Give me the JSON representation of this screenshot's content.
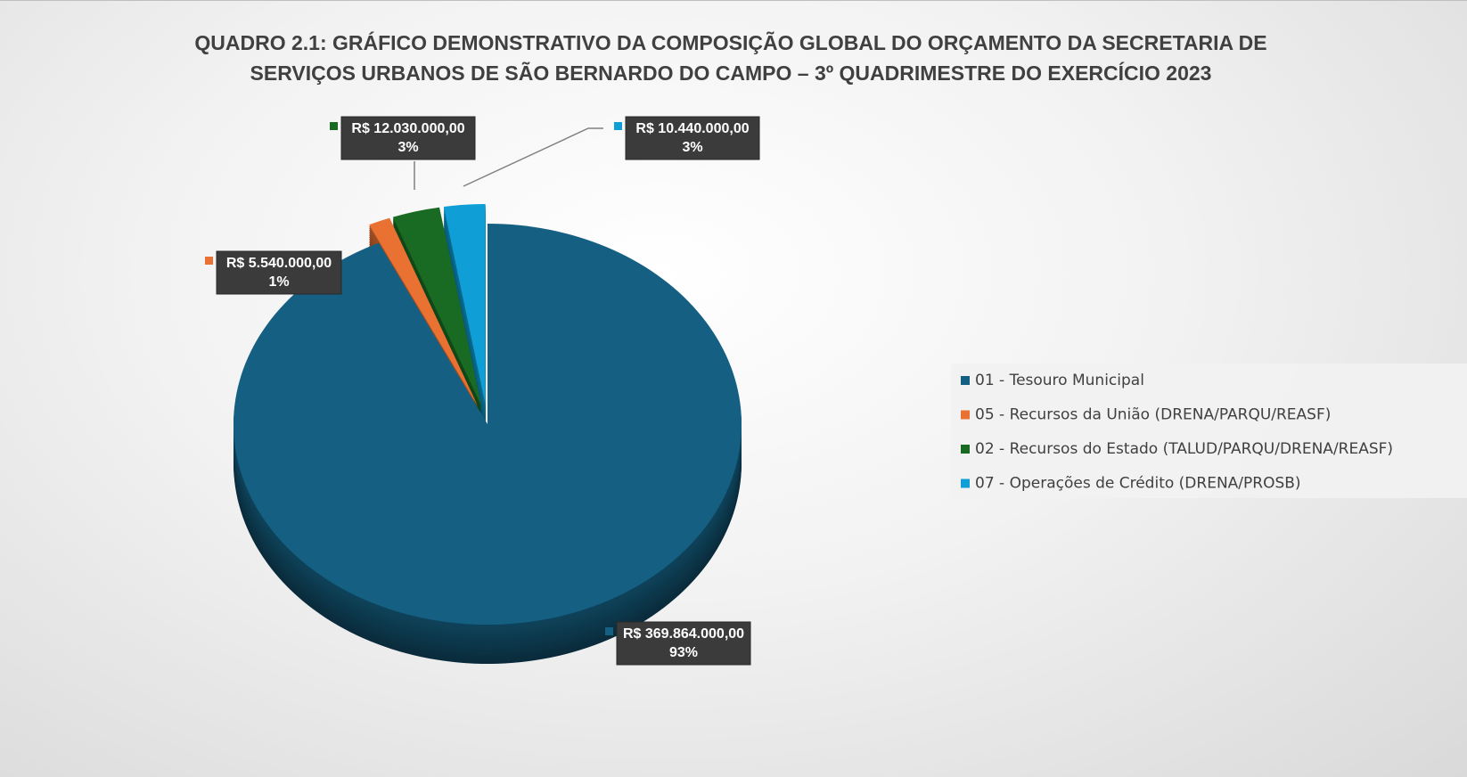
{
  "chart_data": {
    "type": "pie",
    "title": "QUADRO 2.1: GRÁFICO DEMONSTRATIVO DA COMPOSIÇÃO GLOBAL DO ORÇAMENTO DA SECRETARIA DE SERVIÇOS URBANOS DE SÃO BERNARDO DO CAMPO – 3º QUADRIMESTRE DO EXERCÍCIO 2023",
    "categories": [
      "01 - Tesouro Municipal",
      "05 - Recursos da União (DRENA/PARQU/REASF)",
      "02 - Recursos do Estado (TALUD/PARQU/DRENA/REASF)",
      "07 - Operações de Crédito (DRENA/PROSB)"
    ],
    "values": [
      369864000,
      5540000,
      12030000,
      10440000
    ],
    "value_labels": [
      "R$ 369.864.000,00",
      "R$ 5.540.000,00",
      "R$ 12.030.000,00",
      "R$ 10.440.000,00"
    ],
    "percent_labels": [
      "93%",
      "1%",
      "3%",
      "3%"
    ],
    "colors": [
      "#156082",
      "#e97132",
      "#196b24",
      "#0f9ed5"
    ],
    "legend": "right"
  }
}
